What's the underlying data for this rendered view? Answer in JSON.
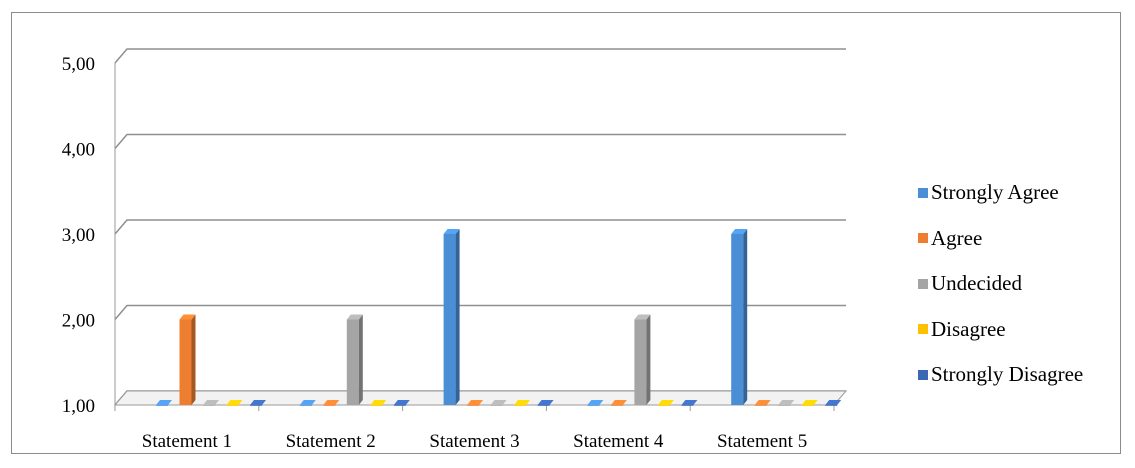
{
  "chart_data": {
    "type": "bar",
    "title": "",
    "xlabel": "",
    "ylabel": "",
    "categories": [
      "Statement 1",
      "Statement 2",
      "Statement 3",
      "Statement 4",
      "Statement 5"
    ],
    "ylim": [
      1,
      5
    ],
    "yticks": [
      "1,00",
      "2,00",
      "3,00",
      "4,00",
      "5,00"
    ],
    "grid": true,
    "legend_position": "right",
    "style": "3d-column",
    "series": [
      {
        "name": "Strongly Agree",
        "color": "#4a8fd6",
        "values": [
          1,
          1,
          3,
          1,
          3
        ]
      },
      {
        "name": "Agree",
        "color": "#ed7d31",
        "values": [
          2,
          1,
          1,
          1,
          1
        ]
      },
      {
        "name": "Undecided",
        "color": "#a5a5a5",
        "values": [
          1,
          2,
          1,
          2,
          1
        ]
      },
      {
        "name": "Disagree",
        "color": "#ffc000",
        "values": [
          1,
          1,
          1,
          1,
          1
        ]
      },
      {
        "name": "Strongly Disagree",
        "color": "#3b67b5",
        "values": [
          1,
          1,
          1,
          1,
          1
        ]
      }
    ]
  }
}
